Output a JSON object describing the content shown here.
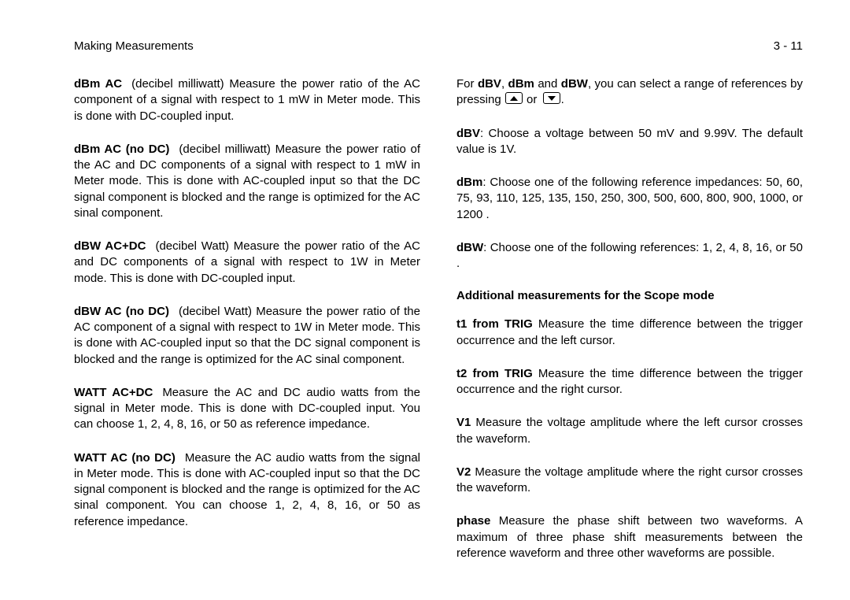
{
  "header": {
    "left": "Making Measurements",
    "right": "3 - 11"
  },
  "left_col": [
    {
      "term": "dBm AC",
      "text": "(decibel milliwatt) Measure the power ratio of the AC component of a signal with respect to 1 mW in Meter mode. This is done with DC-coupled input."
    },
    {
      "term": "dBm AC (no DC)",
      "text": "(decibel milliwatt) Measure the power ratio of the AC and DC components of a signal with respect to 1 mW in Meter mode. This is done with AC-coupled input so that the DC signal component is blocked and the range is optimized for the AC sinal component."
    },
    {
      "term": "dBW AC+DC",
      "text": "(decibel Watt) Measure the power ratio of the AC and DC components of a signal with respect to 1W in Meter mode. This is done with DC-coupled input."
    },
    {
      "term": "dBW AC (no DC)",
      "text": "(decibel Watt) Measure the power ratio of the AC component of a signal with respect to 1W in Meter mode. This is done with AC-coupled input so that the DC signal component is blocked and the range is optimized for the AC sinal component."
    },
    {
      "term": "WATT AC+DC",
      "text": "Measure the AC and DC audio watts from the signal in Meter mode. This is done with DC-coupled input. You can choose 1, 2, 4, 8, 16, or 50   as reference impedance."
    },
    {
      "term": "WATT AC (no DC)",
      "text": "Measure the AC audio watts from the signal in Meter mode. This is done with AC-coupled input so that the DC signal component is blocked and the range is optimized for the AC sinal component. You can choose 1, 2, 4, 8, 16, or 50   as reference impedance."
    }
  ],
  "right_col_top": {
    "prefix": "For ",
    "b1": "dBV",
    "b2": "dBm",
    "b3": "dBW",
    "middle": ", you can select a range of references by pressing ",
    "or": " or ",
    "suffix": "."
  },
  "right_col_defs": [
    {
      "term": "dBV",
      "text": ": Choose a voltage between 50 mV and 9.99V. The default value is 1V."
    },
    {
      "term": "dBm",
      "text": ": Choose one of the following reference impedances: 50, 60, 75, 93, 110, 125, 135, 150, 250, 300, 500, 600, 800, 900, 1000, or 1200  ."
    },
    {
      "term": "dBW",
      "text": ": Choose one of the following references: 1, 2, 4, 8, 16, or 50  ."
    }
  ],
  "scope_heading": "Additional measurements for the Scope mode",
  "right_col_scope": [
    {
      "term": "t1 from TRIG",
      "text": " Measure the time difference between the trigger occurrence and the left cursor."
    },
    {
      "term": "t2 from TRIG",
      "text": " Measure the time difference between the trigger occurrence and the right cursor."
    },
    {
      "term": "V1",
      "text": " Measure the voltage amplitude where the left cursor crosses the waveform."
    },
    {
      "term": "V2",
      "text": " Measure the voltage amplitude where the right cursor crosses the waveform."
    },
    {
      "term": "phase",
      "text": " Measure the phase shift between two waveforms. A maximum of three phase shift measurements between the reference waveform and three other waveforms are possible."
    }
  ]
}
